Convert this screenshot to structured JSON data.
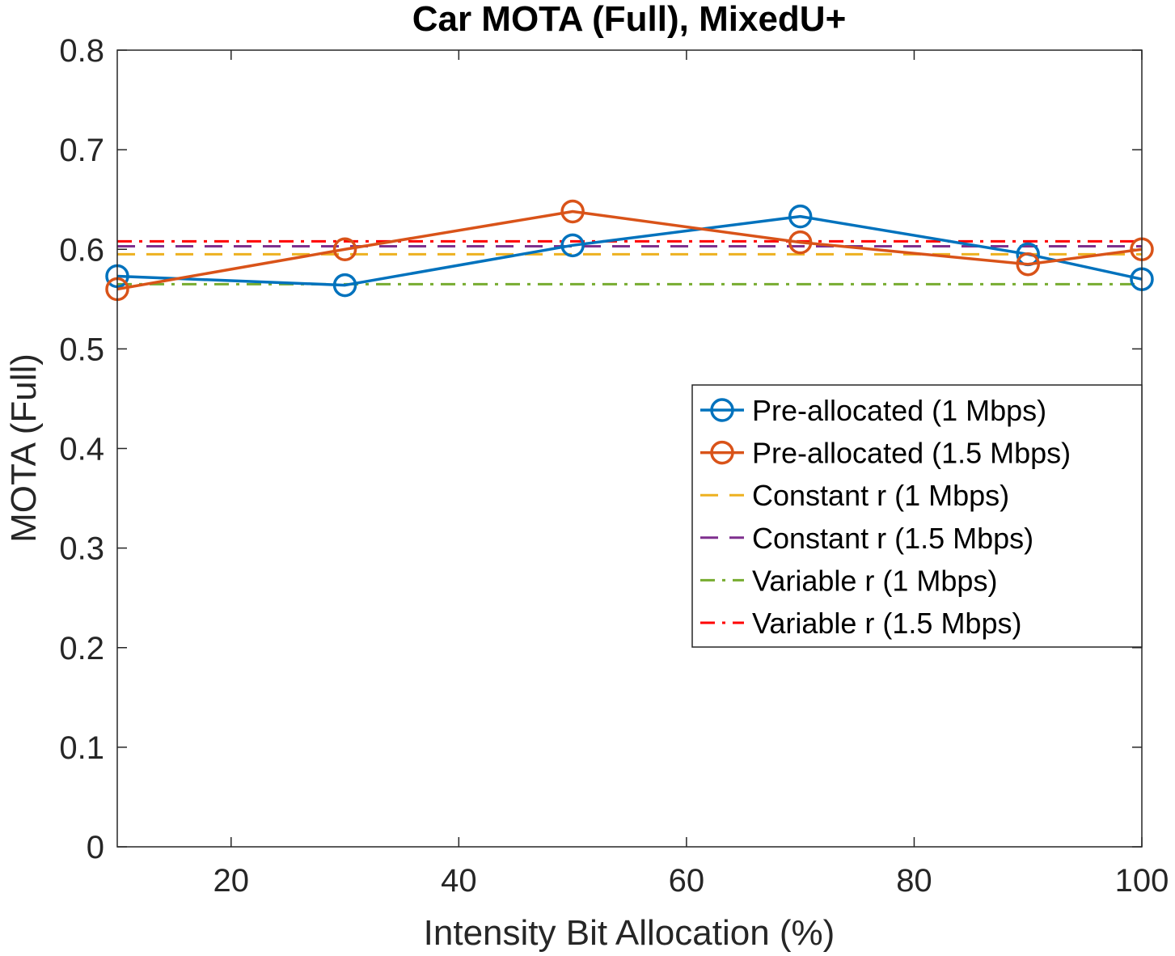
{
  "chart_data": {
    "type": "line",
    "title": "Car MOTA (Full), MixedU+",
    "xlabel": "Intensity Bit Allocation (%)",
    "ylabel": "MOTA (Full)",
    "xlim": [
      10,
      100
    ],
    "ylim": [
      0,
      0.8
    ],
    "xticks": [
      20,
      40,
      60,
      80,
      100
    ],
    "xtick_labels": [
      "20",
      "40",
      "60",
      "80",
      "100"
    ],
    "yticks": [
      0,
      0.1,
      0.2,
      0.3,
      0.4,
      0.5,
      0.6,
      0.7,
      0.8
    ],
    "ytick_labels": [
      "0",
      "0.1",
      "0.2",
      "0.3",
      "0.4",
      "0.5",
      "0.6",
      "0.7",
      "0.8"
    ],
    "grid": false,
    "legend_position": "right",
    "series": [
      {
        "name": "Pre-allocated (1 Mbps)",
        "style": "solid-marker",
        "color": "#0072BD",
        "x": [
          10,
          30,
          50,
          70,
          90,
          100
        ],
        "values": [
          0.573,
          0.564,
          0.604,
          0.633,
          0.595,
          0.57
        ]
      },
      {
        "name": "Pre-allocated (1.5 Mbps)",
        "style": "solid-marker",
        "color": "#D95319",
        "x": [
          10,
          30,
          50,
          70,
          90,
          100
        ],
        "values": [
          0.56,
          0.6,
          0.638,
          0.607,
          0.585,
          0.6
        ]
      },
      {
        "name": "Constant r (1 Mbps)",
        "style": "dashed",
        "color": "#EDB120",
        "x": [
          10,
          100
        ],
        "values": [
          0.595,
          0.595
        ]
      },
      {
        "name": "Constant r (1.5 Mbps)",
        "style": "dashed",
        "color": "#7E2F8E",
        "x": [
          10,
          100
        ],
        "values": [
          0.603,
          0.603
        ]
      },
      {
        "name": "Variable r (1 Mbps)",
        "style": "dashdot",
        "color": "#77AC30",
        "x": [
          10,
          100
        ],
        "values": [
          0.565,
          0.565
        ]
      },
      {
        "name": "Variable r (1.5 Mbps)",
        "style": "dashdot",
        "color": "#FF0000",
        "x": [
          10,
          100
        ],
        "values": [
          0.608,
          0.608
        ]
      }
    ]
  }
}
